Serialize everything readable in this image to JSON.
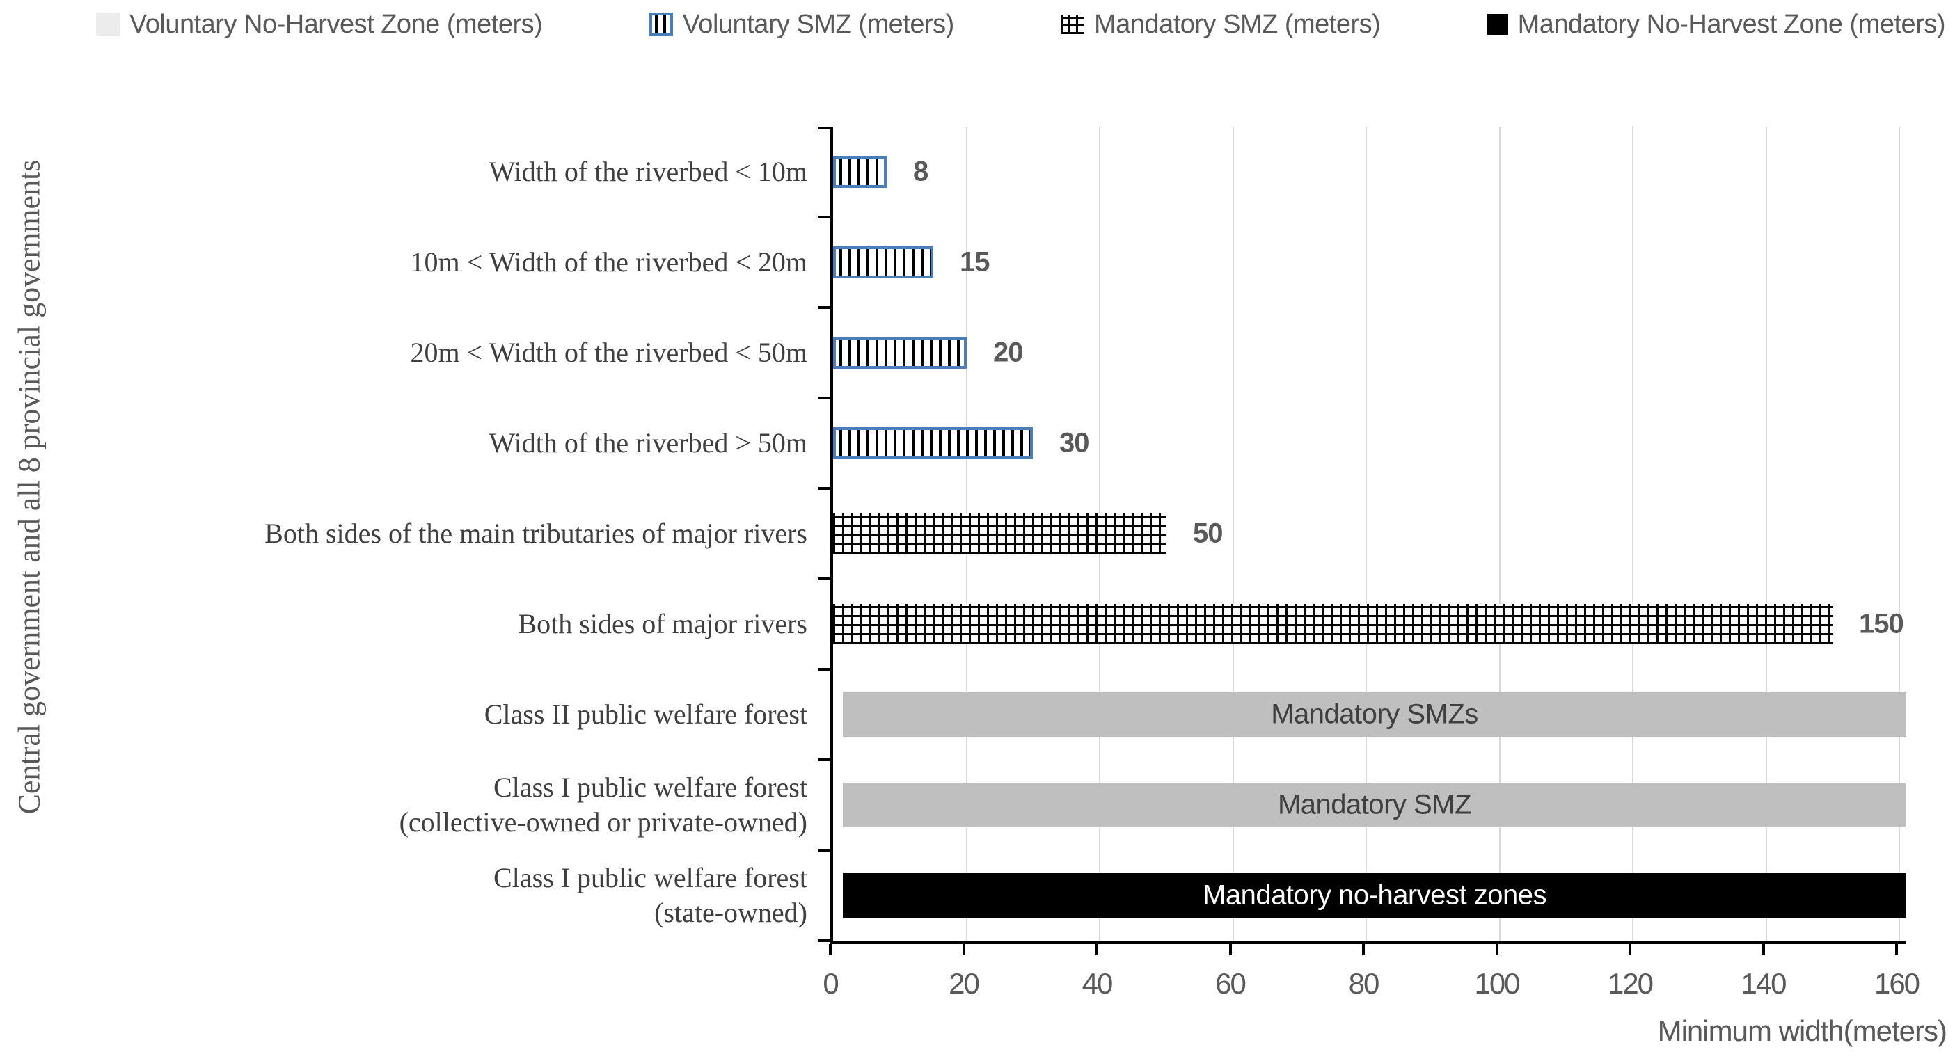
{
  "chart_data": {
    "type": "bar",
    "orientation": "horizontal",
    "xlabel": "Minimum width(meters)",
    "ylabel": "Central government and all 8 provincial governments",
    "xlim": [
      0,
      160
    ],
    "xticks": [
      0,
      20,
      40,
      60,
      80,
      100,
      120,
      140,
      160
    ],
    "grid": "vertical-light-gray",
    "legend_position": "top",
    "legend": [
      {
        "label": "Voluntary No-Harvest Zone (meters)",
        "swatch": "light-gray-square",
        "fill": "#ECECEC"
      },
      {
        "label": "Voluntary SMZ (meters)",
        "swatch": "blue-bordered-vertical-stripes",
        "border": "#4A7EBB"
      },
      {
        "label": "Mandatory SMZ (meters)",
        "swatch": "black-crosshatch"
      },
      {
        "label": "Mandatory No-Harvest Zone (meters)",
        "swatch": "black-square",
        "fill": "#000000"
      }
    ],
    "rows": [
      {
        "category_lines": [
          "Width of the riverbed < 10m"
        ],
        "series": "Voluntary SMZ (meters)",
        "value": 8,
        "value_label": "8",
        "style": "stripes"
      },
      {
        "category_lines": [
          "10m < Width of the riverbed < 20m"
        ],
        "series": "Voluntary SMZ (meters)",
        "value": 15,
        "value_label": "15",
        "style": "stripes"
      },
      {
        "category_lines": [
          "20m < Width of the riverbed < 50m"
        ],
        "series": "Voluntary SMZ (meters)",
        "value": 20,
        "value_label": "20",
        "style": "stripes"
      },
      {
        "category_lines": [
          "Width of the riverbed > 50m"
        ],
        "series": "Voluntary SMZ (meters)",
        "value": 30,
        "value_label": "30",
        "style": "stripes"
      },
      {
        "category_lines": [
          "Both sides of the main tributaries of major rivers"
        ],
        "series": "Mandatory SMZ (meters)",
        "value": 50,
        "value_label": "50",
        "style": "crosshatch"
      },
      {
        "category_lines": [
          "Both sides of major rivers"
        ],
        "series": "Mandatory SMZ (meters)",
        "value": 150,
        "value_label": "150",
        "style": "crosshatch"
      },
      {
        "category_lines": [
          "Class II public welfare forest"
        ],
        "series": "Voluntary No-Harvest Zone (meters)",
        "value": null,
        "extends_full_axis": true,
        "bar_text": "Mandatory SMZs",
        "style": "gray"
      },
      {
        "category_lines": [
          "Class I public welfare forest",
          "(collective-owned or private-owned)"
        ],
        "series": "Voluntary No-Harvest Zone (meters)",
        "value": null,
        "extends_full_axis": true,
        "bar_text": "Mandatory SMZ",
        "style": "gray"
      },
      {
        "category_lines": [
          "Class I public welfare forest",
          "(state-owned)"
        ],
        "series": "Mandatory No-Harvest Zone (meters)",
        "value": null,
        "extends_full_axis": true,
        "bar_text": "Mandatory no-harvest zones",
        "style": "black"
      }
    ],
    "colors": {
      "gray_bar": "#BFBFBF",
      "black_bar": "#000000",
      "stripe_border_blue": "#4A7EBB",
      "gridline": "#D9D9D9",
      "axis": "#000000",
      "tick_text": "#595959",
      "category_text": "#3F3F3F"
    }
  }
}
